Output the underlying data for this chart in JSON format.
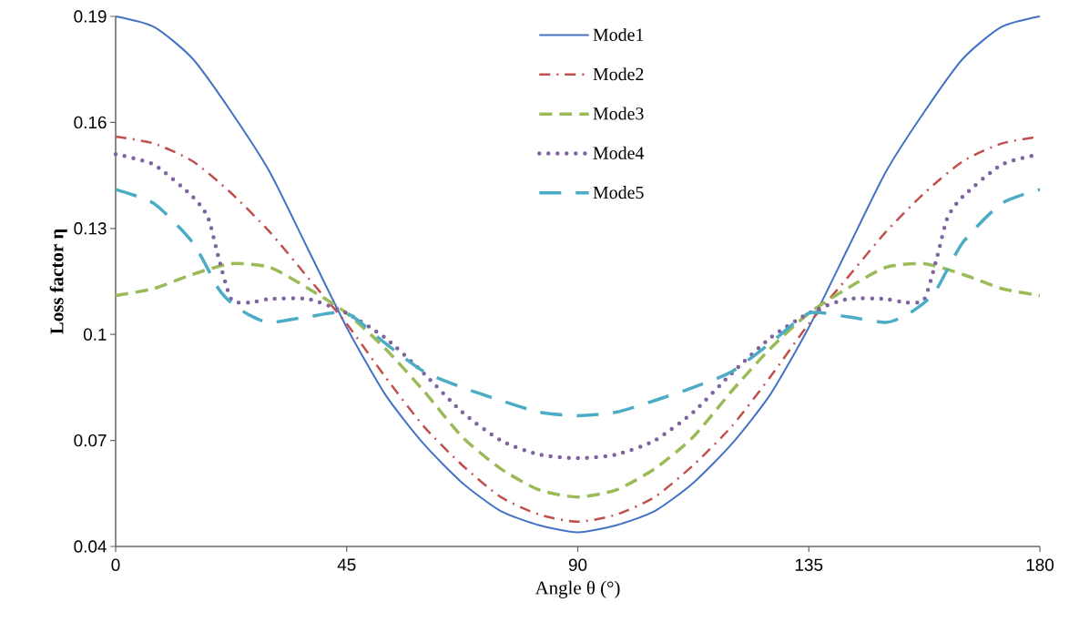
{
  "chart_data": {
    "type": "line",
    "xlabel": "Angle θ (°)",
    "ylabel": "Loss factor η",
    "xlim": [
      0,
      180
    ],
    "ylim": [
      0.04,
      0.19
    ],
    "xticks": [
      0,
      45,
      90,
      135,
      180
    ],
    "yticks": [
      0.04,
      0.07,
      0.1,
      0.13,
      0.16,
      0.19
    ],
    "legend": "top",
    "grid": false,
    "marker": "none",
    "series": [
      {
        "name": "Mode1",
        "color": "#4472c4",
        "line_style": "solid",
        "x": [
          0,
          7.5,
          15,
          22.5,
          30,
          37.5,
          45,
          52.5,
          60,
          67.5,
          75,
          82.5,
          90,
          97.5,
          105,
          112.5,
          120,
          127.5,
          135,
          142.5,
          150,
          157.5,
          165,
          172.5,
          180
        ],
        "values": [
          0.19,
          0.187,
          0.178,
          0.163,
          0.146,
          0.124,
          0.102,
          0.083,
          0.069,
          0.058,
          0.05,
          0.046,
          0.044,
          0.046,
          0.05,
          0.058,
          0.069,
          0.083,
          0.102,
          0.124,
          0.146,
          0.163,
          0.178,
          0.187,
          0.19
        ]
      },
      {
        "name": "Mode2",
        "color": "#c0504d",
        "line_style": "dashdot",
        "x": [
          0,
          7.5,
          15,
          22.5,
          30,
          37.5,
          45,
          52.5,
          60,
          67.5,
          75,
          82.5,
          90,
          97.5,
          105,
          112.5,
          120,
          127.5,
          135,
          142.5,
          150,
          157.5,
          165,
          172.5,
          180
        ],
        "values": [
          0.156,
          0.154,
          0.149,
          0.14,
          0.129,
          0.116,
          0.103,
          0.088,
          0.074,
          0.063,
          0.054,
          0.049,
          0.047,
          0.049,
          0.054,
          0.063,
          0.074,
          0.088,
          0.103,
          0.116,
          0.129,
          0.14,
          0.149,
          0.154,
          0.156
        ]
      },
      {
        "name": "Mode3",
        "color": "#9bbb59",
        "line_style": "dashed",
        "x": [
          0,
          7.5,
          15,
          22.5,
          30,
          37.5,
          45,
          52.5,
          60,
          67.5,
          75,
          82.5,
          90,
          97.5,
          105,
          112.5,
          120,
          127.5,
          135,
          142.5,
          150,
          157.5,
          165,
          172.5,
          180
        ],
        "values": [
          0.111,
          0.113,
          0.117,
          0.12,
          0.119,
          0.113,
          0.106,
          0.096,
          0.084,
          0.071,
          0.062,
          0.056,
          0.054,
          0.056,
          0.062,
          0.071,
          0.084,
          0.096,
          0.106,
          0.113,
          0.119,
          0.12,
          0.117,
          0.113,
          0.111
        ]
      },
      {
        "name": "Mode4",
        "color": "#8064a2",
        "line_style": "dotted",
        "x": [
          0,
          7.5,
          15,
          18,
          20,
          22.5,
          26,
          30,
          37.5,
          45,
          52.5,
          60,
          67.5,
          75,
          82.5,
          90,
          97.5,
          105,
          112.5,
          120,
          127.5,
          135,
          142.5,
          150,
          154,
          157.5,
          160,
          162,
          165,
          172.5,
          180
        ],
        "values": [
          0.151,
          0.148,
          0.139,
          0.133,
          0.122,
          0.11,
          0.109,
          0.11,
          0.11,
          0.106,
          0.099,
          0.089,
          0.078,
          0.07,
          0.066,
          0.065,
          0.066,
          0.07,
          0.078,
          0.089,
          0.099,
          0.106,
          0.11,
          0.11,
          0.109,
          0.11,
          0.122,
          0.133,
          0.139,
          0.148,
          0.151
        ]
      },
      {
        "name": "Mode5",
        "color": "#4bacc6",
        "line_style": "long dashed",
        "x": [
          0,
          7.5,
          15,
          20,
          22.5,
          26,
          30,
          37.5,
          45,
          52.5,
          60,
          67.5,
          75,
          82.5,
          90,
          97.5,
          105,
          112.5,
          120,
          127.5,
          135,
          142.5,
          150,
          154,
          157.5,
          160,
          165,
          172.5,
          180
        ],
        "values": [
          0.141,
          0.137,
          0.126,
          0.113,
          0.109,
          0.1055,
          0.1034,
          0.105,
          0.106,
          0.0975,
          0.0895,
          0.085,
          0.0813,
          0.078,
          0.077,
          0.078,
          0.0813,
          0.085,
          0.0895,
          0.0975,
          0.106,
          0.105,
          0.1034,
          0.1055,
          0.109,
          0.113,
          0.126,
          0.137,
          0.141
        ]
      }
    ]
  }
}
